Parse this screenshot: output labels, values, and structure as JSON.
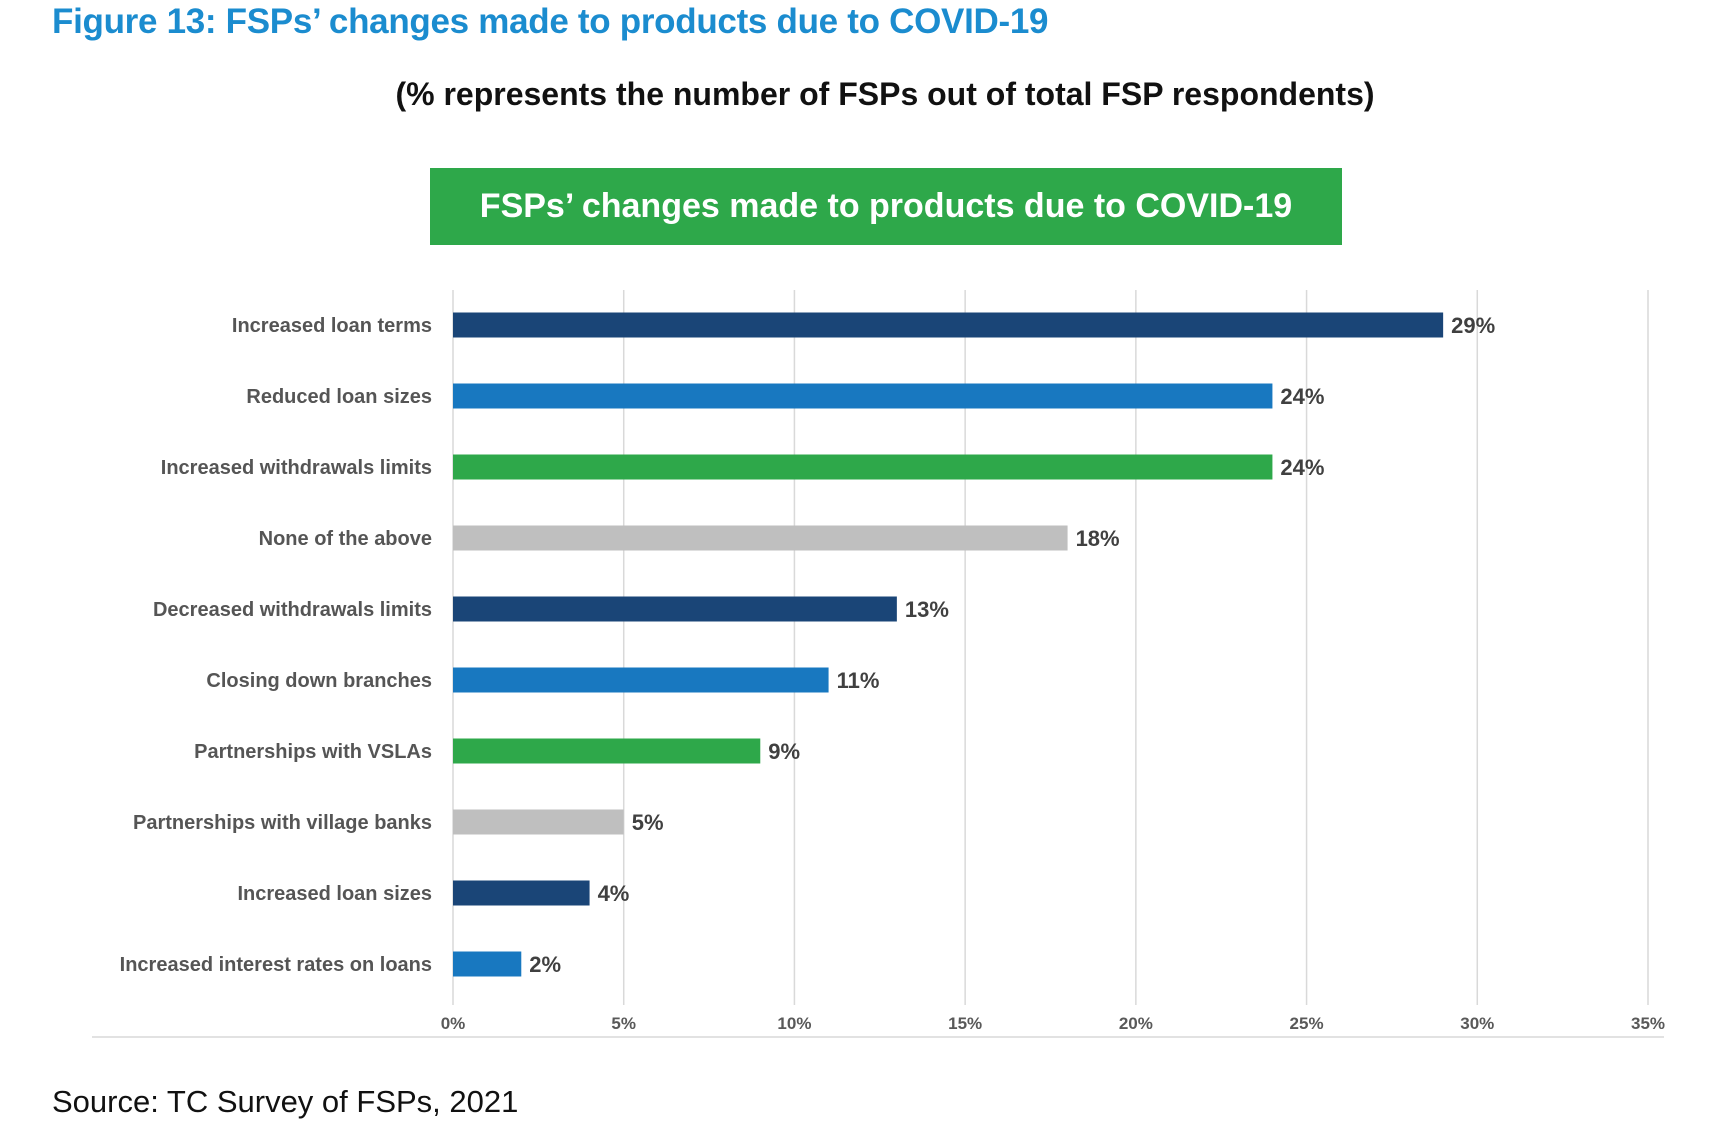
{
  "figure": {
    "title": "Figure 13: FSPs’ changes made to products due to COVID-19",
    "subtitle": "(% represents the number of FSPs out of total FSP respondents)",
    "banner": "FSPs’ changes made to products due to COVID-19",
    "source": "Source: TC Survey of FSPs, 2021"
  },
  "chart_data": {
    "type": "bar",
    "orientation": "horizontal",
    "title": "FSPs’ changes made to products due to COVID-19",
    "xlabel": "",
    "ylabel": "",
    "xlim": [
      0,
      35
    ],
    "x_unit": "%",
    "x_ticks": [
      "0%",
      "5%",
      "10%",
      "15%",
      "20%",
      "25%",
      "30%",
      "35%"
    ],
    "grid": "vertical",
    "legend": "none",
    "categories": [
      "Increased loan terms",
      "Reduced loan sizes",
      "Increased withdrawals limits",
      "None of the above",
      "Decreased withdrawals limits",
      "Closing down branches",
      "Partnerships with VSLAs",
      "Partnerships with village banks",
      "Increased loan sizes",
      "Increased interest rates on loans"
    ],
    "values": [
      29,
      24,
      24,
      18,
      13,
      11,
      9,
      5,
      4,
      2
    ],
    "value_labels": [
      "29%",
      "24%",
      "24%",
      "18%",
      "13%",
      "11%",
      "9%",
      "5%",
      "4%",
      "2%"
    ],
    "colors": [
      "#1a4577",
      "#1878c0",
      "#2ea84a",
      "#bfbfbf",
      "#1a4577",
      "#1878c0",
      "#2ea84a",
      "#bfbfbf",
      "#1a4577",
      "#1878c0"
    ],
    "gridline_color": "#d9d9d9"
  }
}
